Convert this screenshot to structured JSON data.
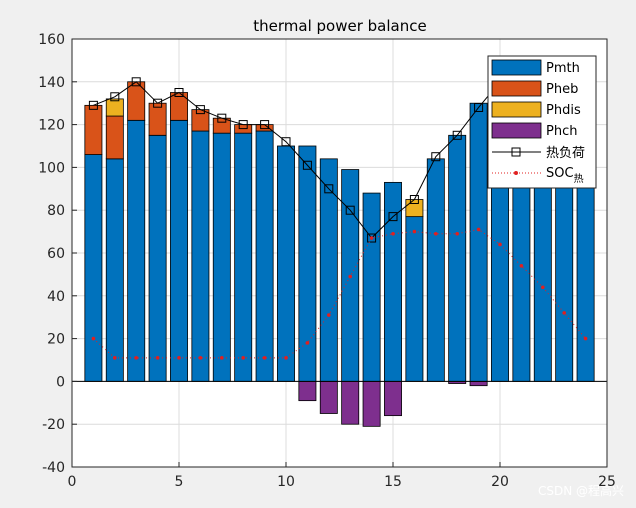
{
  "chart_data": {
    "type": "bar",
    "title": "thermal power balance",
    "xlabel": "",
    "ylabel": "",
    "xlim": [
      0,
      25
    ],
    "ylim": [
      -40,
      160
    ],
    "xticks": [
      0,
      5,
      10,
      15,
      20,
      25
    ],
    "yticks": [
      -40,
      -20,
      0,
      20,
      40,
      60,
      80,
      100,
      120,
      140,
      160
    ],
    "grid": true,
    "legend_position": "top-right",
    "categories": [
      1,
      2,
      3,
      4,
      5,
      6,
      7,
      8,
      9,
      10,
      11,
      12,
      13,
      14,
      15,
      16,
      17,
      18,
      19,
      20,
      21,
      22,
      23,
      24
    ],
    "stacked_series": [
      {
        "name": "Pmth",
        "color": "#0072BD",
        "values": [
          106,
          104,
          122,
          115,
          122,
          117,
          116,
          116,
          117,
          110,
          110,
          104,
          99,
          88,
          93,
          77,
          104,
          115,
          130,
          130,
          130,
          130,
          130,
          130
        ]
      },
      {
        "name": "Pheb",
        "color": "#D95319",
        "values": [
          23,
          20,
          18,
          15,
          13,
          10,
          7,
          4,
          3,
          0,
          0,
          0,
          0,
          0,
          0,
          0,
          0,
          0,
          0,
          0,
          0,
          0,
          0,
          0
        ]
      },
      {
        "name": "Phdis",
        "color": "#EDB120",
        "values": [
          0,
          8,
          0,
          0,
          0,
          0,
          0,
          0,
          0,
          0,
          0,
          0,
          0,
          0,
          0,
          8,
          0,
          0,
          0,
          0,
          0,
          0,
          0,
          0
        ]
      },
      {
        "name": "Phch",
        "color": "#7E2F8E",
        "values": [
          0,
          0,
          0,
          0,
          0,
          0,
          0,
          0,
          0,
          0,
          -9,
          -15,
          -20,
          -21,
          -16,
          0,
          0,
          -1,
          -2,
          0,
          0,
          0,
          0,
          0
        ]
      }
    ],
    "line_series": [
      {
        "name": "热负荷",
        "color": "#000000",
        "marker": "square",
        "values": [
          129,
          133,
          140,
          130,
          135,
          127,
          123,
          120,
          120,
          112,
          101,
          90,
          80,
          67,
          77,
          85,
          105,
          115,
          128,
          140,
          140,
          140,
          140,
          140
        ]
      },
      {
        "name": "SOC热",
        "color": "#E02020",
        "marker": "dot",
        "style": "dotted",
        "values": [
          20,
          11,
          11,
          11,
          11,
          11,
          11,
          11,
          11,
          11,
          18,
          31,
          49,
          67,
          69,
          70,
          69,
          69,
          71,
          64,
          54,
          44,
          32,
          20
        ]
      }
    ]
  },
  "legend": {
    "items": [
      "Pmth",
      "Pheb",
      "Phdis",
      "Phch",
      "热负荷"
    ],
    "soc_label_main": "SOC",
    "soc_label_sub": "热"
  },
  "watermark": "CSDN @程高兴"
}
